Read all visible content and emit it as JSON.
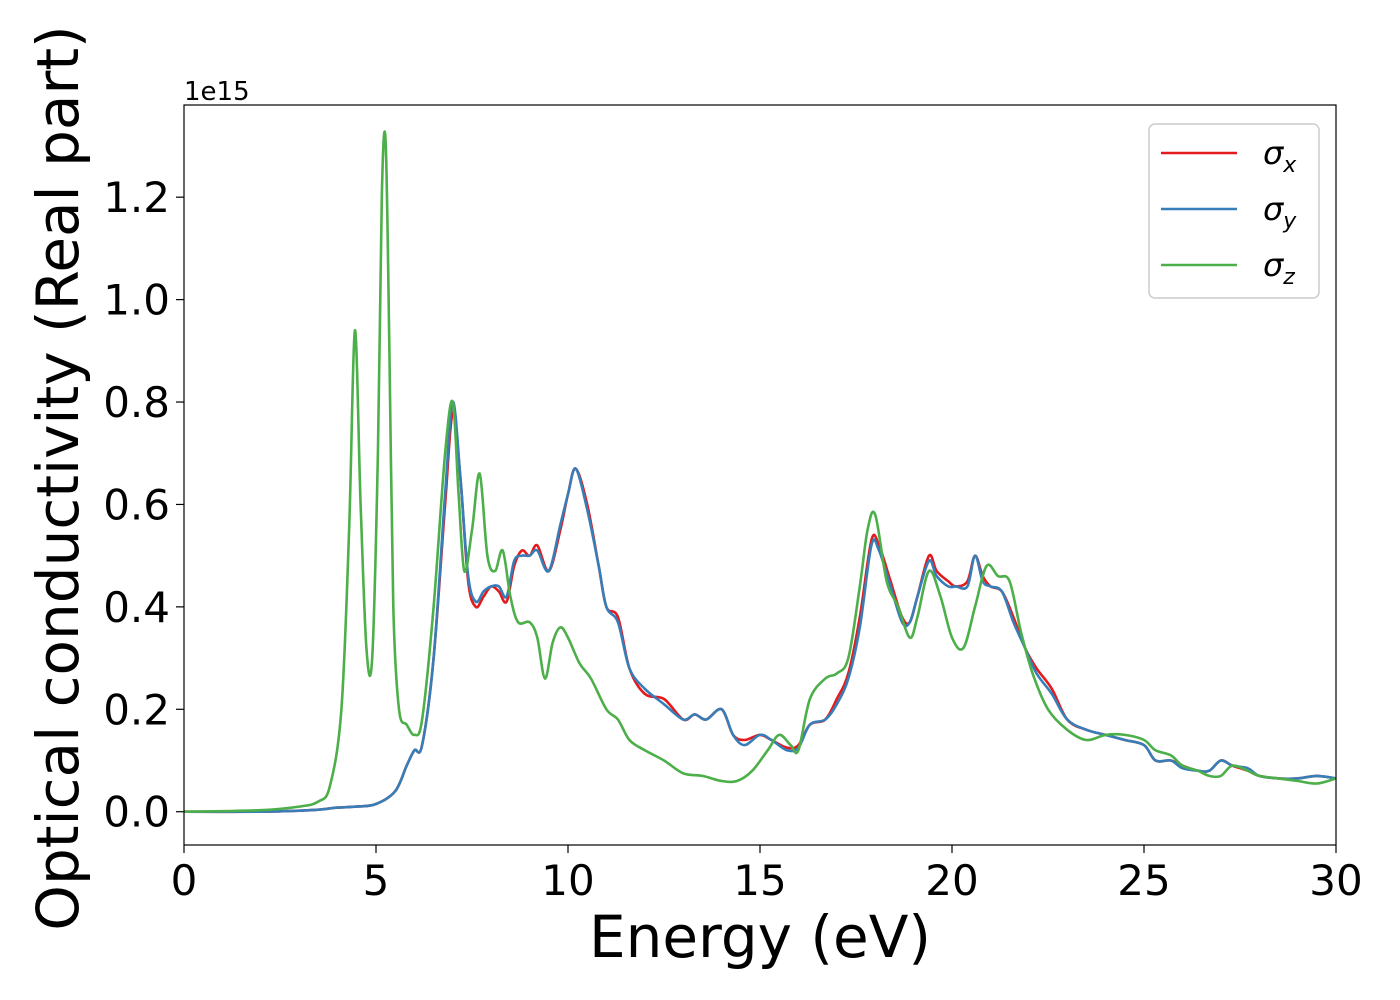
{
  "chart_data": {
    "type": "line",
    "xlabel": "Energy (eV)",
    "ylabel": "Optical conductivity (Real part)",
    "offset_text": "1e15",
    "y_multiplier": 1000000000000000.0,
    "xlim": [
      0,
      30
    ],
    "ylim": [
      -0.065,
      1.38
    ],
    "xticks": [
      0,
      5,
      10,
      15,
      20,
      25,
      30
    ],
    "xtick_labels": [
      "0",
      "5",
      "10",
      "15",
      "20",
      "25",
      "30"
    ],
    "yticks": [
      0.0,
      0.2,
      0.4,
      0.6,
      0.8,
      1.0,
      1.2
    ],
    "ytick_labels": [
      "0.0",
      "0.2",
      "0.4",
      "0.6",
      "0.8",
      "1.0",
      "1.2"
    ],
    "grid": false,
    "legend_position": "top-right",
    "series": [
      {
        "name": "σx",
        "symbol": "σ",
        "subscript": "x",
        "color": "#e41a1c",
        "x": [
          0,
          2,
          3,
          3.5,
          4,
          4.5,
          5,
          5.5,
          5.8,
          6.0,
          6.2,
          6.5,
          6.8,
          7.0,
          7.2,
          7.4,
          7.6,
          7.8,
          8.0,
          8.2,
          8.4,
          8.6,
          8.8,
          9.0,
          9.2,
          9.5,
          9.8,
          10.0,
          10.2,
          10.5,
          10.8,
          11.0,
          11.3,
          11.6,
          12.0,
          12.5,
          13.0,
          13.3,
          13.6,
          14.0,
          14.3,
          14.6,
          15.0,
          15.3,
          15.7,
          16.0,
          16.3,
          16.7,
          17.0,
          17.3,
          17.6,
          17.9,
          18.1,
          18.4,
          18.7,
          18.9,
          19.1,
          19.4,
          19.6,
          19.9,
          20.1,
          20.4,
          20.6,
          20.8,
          21.0,
          21.3,
          21.6,
          21.9,
          22.2,
          22.6,
          23.0,
          23.5,
          24.0,
          24.5,
          25.0,
          25.3,
          25.7,
          26.0,
          26.4,
          26.7,
          27.0,
          27.3,
          27.7,
          28.0,
          28.5,
          29.0,
          29.5,
          30.0
        ],
        "y": [
          0.0,
          0.0,
          0.002,
          0.004,
          0.008,
          0.01,
          0.015,
          0.04,
          0.09,
          0.12,
          0.13,
          0.3,
          0.6,
          0.78,
          0.65,
          0.45,
          0.4,
          0.42,
          0.44,
          0.43,
          0.41,
          0.48,
          0.51,
          0.5,
          0.52,
          0.47,
          0.55,
          0.62,
          0.67,
          0.6,
          0.48,
          0.4,
          0.38,
          0.28,
          0.23,
          0.22,
          0.18,
          0.19,
          0.18,
          0.2,
          0.15,
          0.14,
          0.15,
          0.14,
          0.125,
          0.13,
          0.17,
          0.18,
          0.22,
          0.27,
          0.38,
          0.53,
          0.52,
          0.45,
          0.38,
          0.37,
          0.42,
          0.5,
          0.47,
          0.45,
          0.44,
          0.45,
          0.5,
          0.46,
          0.44,
          0.43,
          0.38,
          0.32,
          0.28,
          0.24,
          0.18,
          0.16,
          0.15,
          0.14,
          0.13,
          0.1,
          0.1,
          0.09,
          0.08,
          0.08,
          0.1,
          0.09,
          0.08,
          0.07,
          0.065,
          0.065,
          0.07,
          0.065
        ]
      },
      {
        "name": "σy",
        "symbol": "σ",
        "subscript": "y",
        "color": "#377eb8",
        "x": [
          0,
          2,
          3,
          3.5,
          4,
          4.5,
          5,
          5.5,
          5.8,
          6.0,
          6.2,
          6.5,
          6.8,
          7.0,
          7.2,
          7.4,
          7.6,
          7.8,
          8.0,
          8.2,
          8.4,
          8.6,
          8.8,
          9.0,
          9.2,
          9.5,
          9.8,
          10.0,
          10.2,
          10.5,
          10.8,
          11.0,
          11.3,
          11.6,
          12.0,
          12.5,
          13.0,
          13.3,
          13.6,
          14.0,
          14.3,
          14.6,
          15.0,
          15.3,
          15.7,
          16.0,
          16.3,
          16.7,
          17.0,
          17.3,
          17.6,
          17.9,
          18.1,
          18.4,
          18.7,
          18.9,
          19.1,
          19.4,
          19.6,
          19.9,
          20.1,
          20.4,
          20.6,
          20.8,
          21.0,
          21.3,
          21.6,
          21.9,
          22.2,
          22.6,
          23.0,
          23.5,
          24.0,
          24.5,
          25.0,
          25.3,
          25.7,
          26.0,
          26.4,
          26.7,
          27.0,
          27.3,
          27.7,
          28.0,
          28.5,
          29.0,
          29.5,
          30.0
        ],
        "y": [
          0.0,
          0.0,
          0.002,
          0.004,
          0.008,
          0.01,
          0.015,
          0.04,
          0.09,
          0.12,
          0.13,
          0.3,
          0.62,
          0.8,
          0.65,
          0.46,
          0.41,
          0.43,
          0.44,
          0.44,
          0.42,
          0.49,
          0.5,
          0.5,
          0.51,
          0.47,
          0.56,
          0.62,
          0.67,
          0.59,
          0.48,
          0.4,
          0.37,
          0.28,
          0.24,
          0.21,
          0.18,
          0.19,
          0.18,
          0.2,
          0.15,
          0.13,
          0.15,
          0.14,
          0.12,
          0.125,
          0.17,
          0.18,
          0.21,
          0.26,
          0.36,
          0.52,
          0.51,
          0.44,
          0.37,
          0.37,
          0.42,
          0.49,
          0.46,
          0.44,
          0.44,
          0.44,
          0.5,
          0.45,
          0.44,
          0.43,
          0.37,
          0.32,
          0.27,
          0.23,
          0.18,
          0.16,
          0.15,
          0.14,
          0.13,
          0.1,
          0.1,
          0.085,
          0.08,
          0.08,
          0.1,
          0.09,
          0.085,
          0.07,
          0.065,
          0.065,
          0.07,
          0.065
        ]
      },
      {
        "name": "σz",
        "symbol": "σ",
        "subscript": "z",
        "color": "#4daf4a",
        "x": [
          0,
          2,
          3,
          3.5,
          3.8,
          4.1,
          4.3,
          4.45,
          4.6,
          4.75,
          4.9,
          5.05,
          5.15,
          5.25,
          5.35,
          5.45,
          5.6,
          5.8,
          6.0,
          6.2,
          6.5,
          6.8,
          7.0,
          7.15,
          7.3,
          7.5,
          7.7,
          7.9,
          8.1,
          8.3,
          8.5,
          8.7,
          9.0,
          9.2,
          9.4,
          9.6,
          9.8,
          10.0,
          10.3,
          10.6,
          11.0,
          11.3,
          11.6,
          12.0,
          12.5,
          13.0,
          13.5,
          14.0,
          14.4,
          14.8,
          15.2,
          15.5,
          15.8,
          16.0,
          16.3,
          16.7,
          17.0,
          17.3,
          17.6,
          17.8,
          18.0,
          18.3,
          18.6,
          18.9,
          19.1,
          19.4,
          19.7,
          20.0,
          20.3,
          20.6,
          20.9,
          21.2,
          21.5,
          21.8,
          22.1,
          22.5,
          23.0,
          23.5,
          24.0,
          24.5,
          25.0,
          25.3,
          25.7,
          26.0,
          26.4,
          26.7,
          27.0,
          27.3,
          27.7,
          28.0,
          28.5,
          29.0,
          29.5,
          30.0
        ],
        "y": [
          0.0,
          0.003,
          0.01,
          0.02,
          0.05,
          0.2,
          0.55,
          0.94,
          0.6,
          0.32,
          0.3,
          0.7,
          1.2,
          1.31,
          0.9,
          0.4,
          0.2,
          0.17,
          0.15,
          0.18,
          0.4,
          0.7,
          0.8,
          0.62,
          0.47,
          0.55,
          0.66,
          0.5,
          0.47,
          0.51,
          0.42,
          0.37,
          0.37,
          0.34,
          0.26,
          0.33,
          0.36,
          0.34,
          0.29,
          0.26,
          0.2,
          0.18,
          0.14,
          0.12,
          0.1,
          0.075,
          0.07,
          0.06,
          0.06,
          0.08,
          0.12,
          0.15,
          0.13,
          0.12,
          0.22,
          0.26,
          0.27,
          0.3,
          0.44,
          0.55,
          0.58,
          0.45,
          0.4,
          0.34,
          0.38,
          0.47,
          0.42,
          0.34,
          0.32,
          0.4,
          0.48,
          0.46,
          0.45,
          0.35,
          0.27,
          0.2,
          0.16,
          0.14,
          0.15,
          0.15,
          0.14,
          0.12,
          0.11,
          0.09,
          0.08,
          0.07,
          0.07,
          0.09,
          0.08,
          0.07,
          0.065,
          0.06,
          0.055,
          0.065
        ]
      }
    ]
  }
}
